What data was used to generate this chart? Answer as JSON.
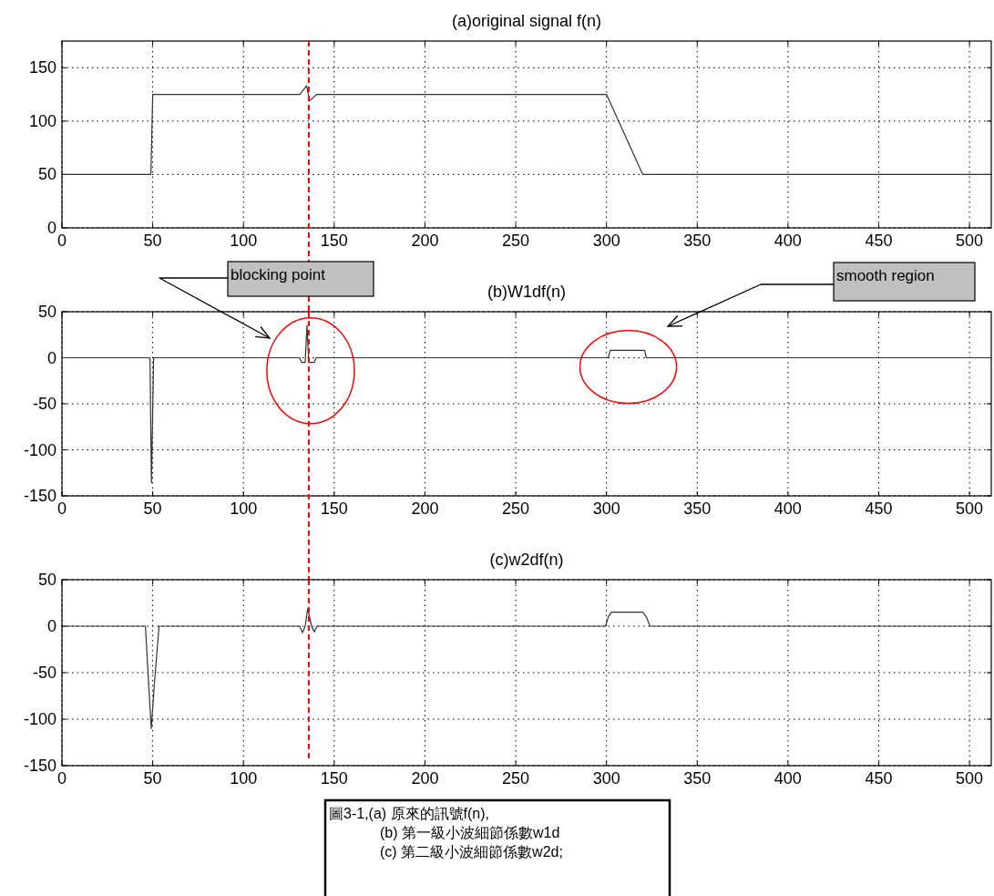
{
  "chart_data": [
    {
      "type": "line",
      "title": "(a)original signal f(n)",
      "xlim": [
        0,
        512
      ],
      "ylim": [
        0,
        175
      ],
      "xticks": [
        0,
        50,
        100,
        150,
        200,
        250,
        300,
        350,
        400,
        450,
        500
      ],
      "yticks": [
        0,
        50,
        100,
        150
      ],
      "grid": true,
      "series": [
        {
          "color": "#333333",
          "x": [
            0,
            49,
            50,
            131,
            134.8,
            136.4,
            140.4,
            300,
            320,
            512
          ],
          "values": [
            50,
            50,
            125,
            125,
            133,
            119,
            125,
            125,
            50,
            50
          ]
        }
      ],
      "ref_lines": [
        {
          "axis": "x",
          "value": 136,
          "color": "#ff0000",
          "line_style": "dashed"
        }
      ]
    },
    {
      "type": "line",
      "title": "(b)W1df(n)",
      "xlim": [
        0,
        512
      ],
      "ylim": [
        -150,
        50
      ],
      "xticks": [
        0,
        50,
        100,
        150,
        200,
        250,
        300,
        350,
        400,
        450,
        500
      ],
      "yticks": [
        -150,
        -100,
        -50,
        0,
        50
      ],
      "grid": true,
      "series": [
        {
          "color": "#333333",
          "x": [
            0,
            48.5,
            49.3,
            50.5,
            131,
            132,
            134,
            135,
            136,
            139,
            140,
            301,
            302,
            321,
            322,
            512
          ],
          "values": [
            0,
            0,
            -136,
            0,
            0,
            -5,
            -5,
            35,
            -5,
            -5,
            0,
            0,
            8,
            8,
            0,
            0
          ]
        }
      ],
      "ref_lines": [
        {
          "axis": "x",
          "value": 136,
          "color": "#ff0000",
          "line_style": "dashed"
        }
      ],
      "annotations": [
        "blocking point",
        "smooth region"
      ]
    },
    {
      "type": "line",
      "title": "(c)w2df(n)",
      "xlim": [
        0,
        512
      ],
      "ylim": [
        -150,
        50
      ],
      "xticks": [
        0,
        50,
        100,
        150,
        200,
        250,
        300,
        350,
        400,
        450,
        500
      ],
      "yticks": [
        -150,
        -100,
        -50,
        0,
        50
      ],
      "grid": true,
      "series": [
        {
          "color": "#333333",
          "x": [
            0,
            46,
            47.7,
            49.2,
            51,
            53.5,
            131,
            132.5,
            134,
            135.4,
            137.5,
            139,
            140.5,
            299.5,
            301,
            302.7,
            320,
            322,
            324,
            512
          ],
          "values": [
            0,
            0,
            -60,
            -110,
            -60,
            0,
            0,
            -7,
            0,
            19,
            0,
            -6,
            0,
            0,
            10,
            15,
            15,
            10,
            0,
            0
          ]
        }
      ],
      "ref_lines": [
        {
          "axis": "x",
          "value": 136,
          "color": "#ff0000",
          "line_style": "dashed"
        }
      ],
      "annotations": [
        "圖3-1,(a) 原來的訊號f(n),",
        "(b) 第一級小波細節係數w1d",
        "(c) 第二級小波細節係數w2d;"
      ]
    }
  ]
}
